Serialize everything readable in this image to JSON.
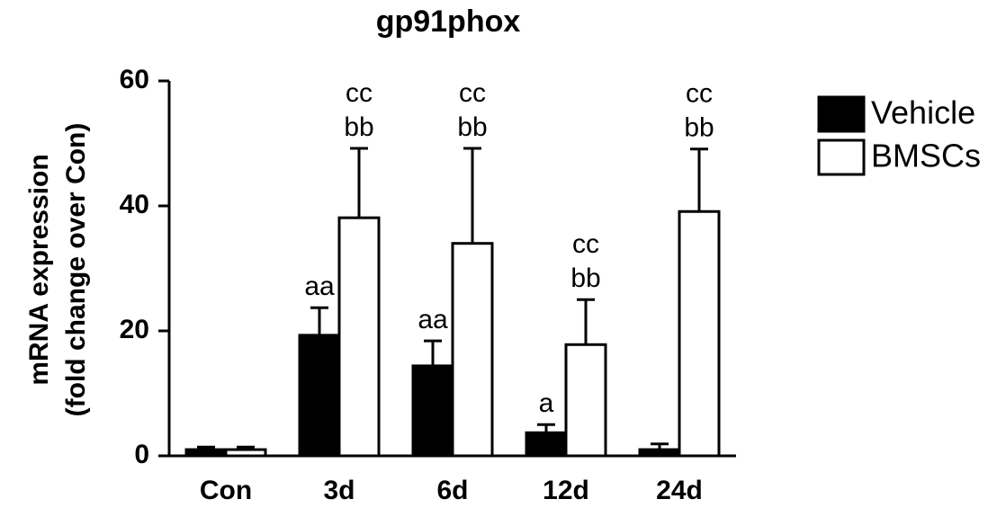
{
  "chart_data": {
    "type": "bar",
    "title": "gp91phox",
    "y_label": [
      "mRNA expression",
      "(fold change over Con)"
    ],
    "categories": [
      "Con",
      "3d",
      "6d",
      "12d",
      "24d"
    ],
    "series": [
      {
        "name": "Vehicle",
        "color": "#000000",
        "values": [
          1.0,
          19.3,
          14.4,
          3.7,
          1.0
        ],
        "errors": [
          0.4,
          4.4,
          4.0,
          1.3,
          0.9
        ],
        "annotations": [
          null,
          [
            "aa"
          ],
          [
            "aa"
          ],
          [
            "a"
          ],
          null
        ]
      },
      {
        "name": "BMSCs",
        "color": "#ffffff",
        "values": [
          1.0,
          38.1,
          34.0,
          17.8,
          39.1
        ],
        "errors": [
          0.4,
          11.1,
          15.2,
          7.2,
          10.0
        ],
        "annotations": [
          null,
          [
            "cc",
            "bb"
          ],
          [
            "cc",
            "bb"
          ],
          [
            "cc",
            "bb"
          ],
          [
            "cc",
            "bb"
          ]
        ]
      }
    ],
    "ylim": [
      0,
      60
    ],
    "yticks": [
      0,
      20,
      40,
      60
    ],
    "grid": false,
    "legend": "right"
  }
}
